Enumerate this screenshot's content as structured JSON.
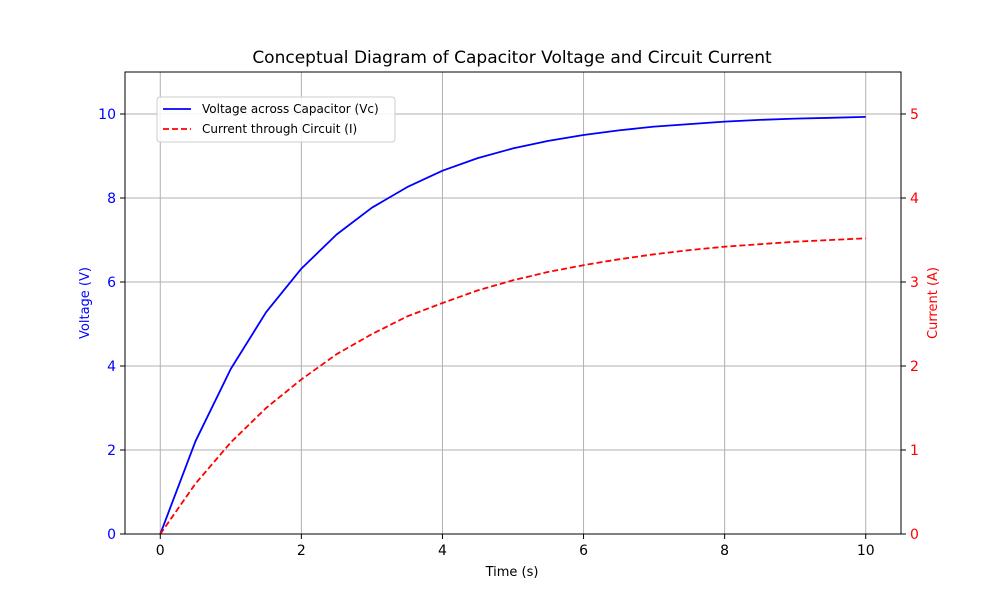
{
  "chart_data": {
    "type": "line",
    "title": "Conceptual Diagram of Capacitor Voltage and Circuit Current",
    "xlabel": "Time (s)",
    "ylabel_left": "Voltage (V)",
    "ylabel_right": "Current (A)",
    "xlim": [
      -0.5,
      10.5
    ],
    "ylim_left": [
      0,
      11
    ],
    "ylim_right": [
      0,
      5.5
    ],
    "x_ticks": [
      0,
      2,
      4,
      6,
      8,
      10
    ],
    "y_ticks_left": [
      0,
      2,
      4,
      6,
      8,
      10
    ],
    "y_ticks_right": [
      0,
      1,
      2,
      3,
      4,
      5
    ],
    "grid": true,
    "legend_position": "upper-left",
    "series": [
      {
        "name": "Voltage across Capacitor (Vc)",
        "axis": "left",
        "color": "#0000ff",
        "style": "solid",
        "x": [
          0,
          0.5,
          1,
          1.5,
          2,
          2.5,
          3,
          3.5,
          4,
          4.5,
          5,
          5.5,
          6,
          6.5,
          7,
          7.5,
          8,
          8.5,
          9,
          9.5,
          10
        ],
        "values": [
          0,
          2.21,
          3.93,
          5.28,
          6.32,
          7.13,
          7.77,
          8.26,
          8.65,
          8.95,
          9.18,
          9.36,
          9.5,
          9.61,
          9.7,
          9.76,
          9.82,
          9.86,
          9.89,
          9.91,
          9.93
        ]
      },
      {
        "name": "Current through Circuit (I)",
        "axis": "right",
        "color": "#ff0000",
        "style": "dashed",
        "x": [
          0,
          0.5,
          1,
          1.5,
          2,
          2.5,
          3,
          3.5,
          4,
          4.5,
          5,
          5.5,
          6,
          6.5,
          7,
          7.5,
          8,
          8.5,
          9,
          9.5,
          10
        ],
        "values": [
          0,
          0.6,
          1.09,
          1.5,
          1.84,
          2.14,
          2.38,
          2.59,
          2.75,
          2.9,
          3.02,
          3.12,
          3.2,
          3.27,
          3.33,
          3.38,
          3.42,
          3.45,
          3.48,
          3.5,
          3.52
        ]
      }
    ]
  }
}
